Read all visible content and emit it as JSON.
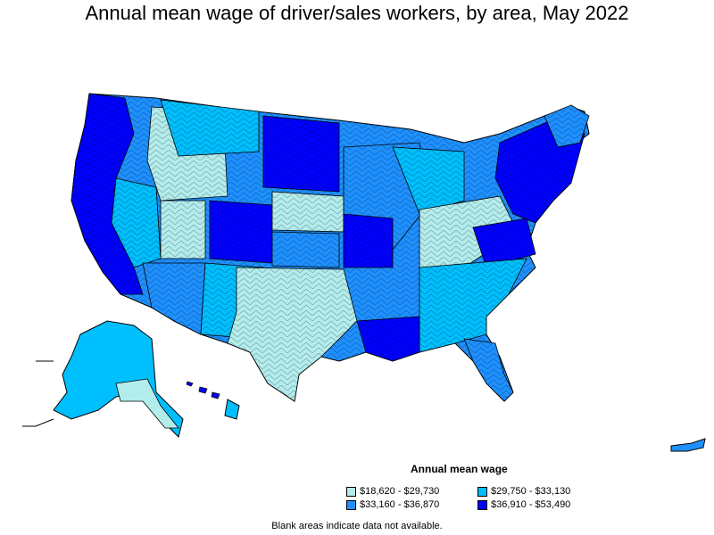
{
  "title": "Annual mean wage of driver/sales workers, by area, May 2022",
  "legend": {
    "title": "Annual mean wage",
    "items": [
      {
        "label": "$18,620 - $29,730",
        "color": "#b3ecec"
      },
      {
        "label": "$29,750 - $33,130",
        "color": "#00bfff"
      },
      {
        "label": "$33,160 - $36,870",
        "color": "#1e90ff"
      },
      {
        "label": "$36,910 - $53,490",
        "color": "#0000ff"
      }
    ]
  },
  "note": "Blank areas indicate data not available."
}
